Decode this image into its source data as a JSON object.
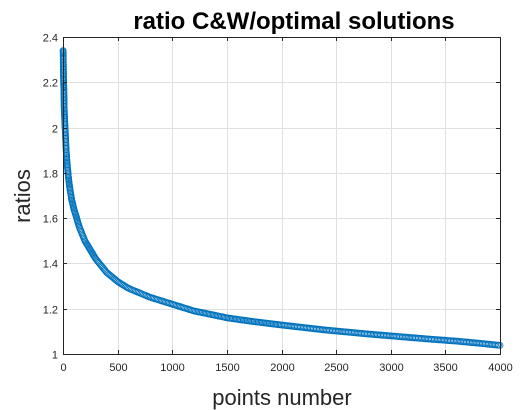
{
  "chart_data": {
    "type": "scatter",
    "title": "ratio C&W/optimal solutions",
    "xlabel": "points number",
    "ylabel": "ratios",
    "xlim": [
      0,
      4000
    ],
    "ylim": [
      1,
      2.4
    ],
    "xticks": [
      0,
      500,
      1000,
      1500,
      2000,
      2500,
      3000,
      3500,
      4000
    ],
    "xtick_labels": [
      "0",
      "500",
      "1000",
      "1500",
      "2000",
      "2500",
      "3000",
      "3500",
      "4000"
    ],
    "yticks": [
      1,
      1.2,
      1.4,
      1.6,
      1.8,
      2,
      2.2,
      2.4
    ],
    "ytick_labels": [
      "1",
      "1.2",
      "1.4",
      "1.6",
      "1.8",
      "2",
      "2.2",
      "2.4"
    ],
    "grid": true,
    "marker": "circle",
    "color": "#0072bd",
    "x": [
      1,
      2,
      4,
      6,
      8,
      10,
      12,
      15,
      20,
      25,
      30,
      35,
      40,
      50,
      60,
      70,
      80,
      100,
      125,
      150,
      175,
      200,
      250,
      300,
      350,
      400,
      450,
      500,
      600,
      700,
      800,
      900,
      1000,
      1100,
      1200,
      1300,
      1400,
      1500,
      1600,
      1700,
      1800,
      1900,
      2000,
      2200,
      2400,
      2600,
      2800,
      3000,
      3200,
      3400,
      3600,
      3800,
      4000
    ],
    "y": [
      2.34,
      2.32,
      2.25,
      2.19,
      2.17,
      2.1,
      2.07,
      2.04,
      1.99,
      1.94,
      1.89,
      1.86,
      1.83,
      1.78,
      1.74,
      1.71,
      1.68,
      1.64,
      1.6,
      1.56,
      1.53,
      1.5,
      1.46,
      1.42,
      1.39,
      1.36,
      1.34,
      1.32,
      1.29,
      1.27,
      1.25,
      1.235,
      1.22,
      1.205,
      1.19,
      1.18,
      1.17,
      1.16,
      1.153,
      1.146,
      1.14,
      1.134,
      1.128,
      1.117,
      1.106,
      1.097,
      1.088,
      1.08,
      1.072,
      1.064,
      1.057,
      1.048,
      1.038
    ]
  }
}
